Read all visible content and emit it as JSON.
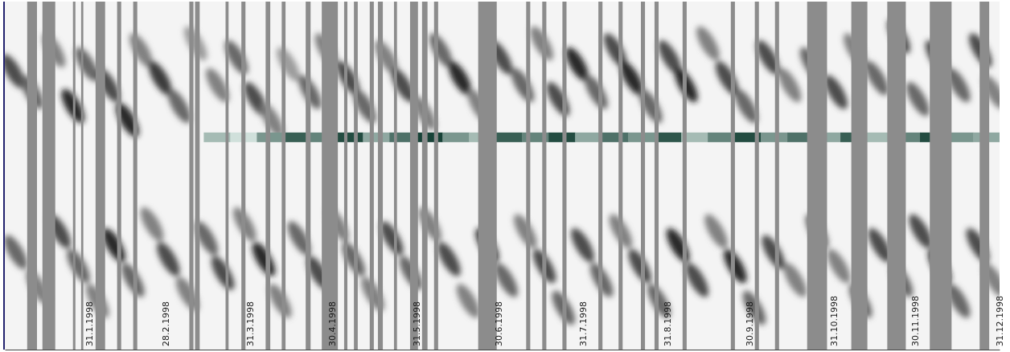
{
  "chart_data": {
    "type": "synoptic",
    "xlim": [
      0,
      365
    ],
    "ylim": [
      0,
      100
    ],
    "tick_labels": "x",
    "xticks": [
      {
        "value": 31,
        "label": "31.1.1998"
      },
      {
        "value": 59,
        "label": "28.2.1998"
      },
      {
        "value": 90,
        "label": "31.3.1998"
      },
      {
        "value": 120,
        "label": "30.4.1998"
      },
      {
        "value": 151,
        "label": "31.5.1998"
      },
      {
        "value": 181,
        "label": "30.6.1998"
      },
      {
        "value": 212,
        "label": "31.7.1998"
      },
      {
        "value": 243,
        "label": "31.8.1998"
      },
      {
        "value": 273,
        "label": "30.9.1998"
      },
      {
        "value": 304,
        "label": "31.10.1998"
      },
      {
        "value": 334,
        "label": "30.11.1998"
      },
      {
        "value": 365,
        "label": "31.12.1998"
      }
    ],
    "darkness_lim": [
      0,
      1
    ],
    "features": [
      {
        "x": 3,
        "y": 80,
        "darkness": 0.8
      },
      {
        "x": 10,
        "y": 74,
        "darkness": 0.7
      },
      {
        "x": 18,
        "y": 86,
        "darkness": 0.6
      },
      {
        "x": 25,
        "y": 70,
        "darkness": 0.9
      },
      {
        "x": 30,
        "y": 82,
        "darkness": 0.7
      },
      {
        "x": 38,
        "y": 76,
        "darkness": 0.8
      },
      {
        "x": 45,
        "y": 66,
        "darkness": 0.9
      },
      {
        "x": 50,
        "y": 86,
        "darkness": 0.6
      },
      {
        "x": 57,
        "y": 78,
        "darkness": 0.85
      },
      {
        "x": 64,
        "y": 70,
        "darkness": 0.7
      },
      {
        "x": 70,
        "y": 88,
        "darkness": 0.5
      },
      {
        "x": 78,
        "y": 76,
        "darkness": 0.6
      },
      {
        "x": 85,
        "y": 84,
        "darkness": 0.7
      },
      {
        "x": 92,
        "y": 72,
        "darkness": 0.8
      },
      {
        "x": 98,
        "y": 66,
        "darkness": 0.6
      },
      {
        "x": 104,
        "y": 82,
        "darkness": 0.5
      },
      {
        "x": 112,
        "y": 74,
        "darkness": 0.7
      },
      {
        "x": 118,
        "y": 86,
        "darkness": 0.6
      },
      {
        "x": 126,
        "y": 78,
        "darkness": 0.8
      },
      {
        "x": 132,
        "y": 70,
        "darkness": 0.7
      },
      {
        "x": 140,
        "y": 84,
        "darkness": 0.6
      },
      {
        "x": 146,
        "y": 76,
        "darkness": 0.8
      },
      {
        "x": 154,
        "y": 68,
        "darkness": 0.6
      },
      {
        "x": 160,
        "y": 86,
        "darkness": 0.7
      },
      {
        "x": 167,
        "y": 78,
        "darkness": 0.9
      },
      {
        "x": 174,
        "y": 70,
        "darkness": 0.6
      },
      {
        "x": 182,
        "y": 84,
        "darkness": 0.8
      },
      {
        "x": 190,
        "y": 76,
        "darkness": 0.7
      },
      {
        "x": 197,
        "y": 88,
        "darkness": 0.6
      },
      {
        "x": 203,
        "y": 72,
        "darkness": 0.8
      },
      {
        "x": 210,
        "y": 82,
        "darkness": 0.9
      },
      {
        "x": 217,
        "y": 74,
        "darkness": 0.7
      },
      {
        "x": 224,
        "y": 86,
        "darkness": 0.8
      },
      {
        "x": 230,
        "y": 78,
        "darkness": 0.9
      },
      {
        "x": 237,
        "y": 70,
        "darkness": 0.7
      },
      {
        "x": 244,
        "y": 84,
        "darkness": 0.8
      },
      {
        "x": 250,
        "y": 76,
        "darkness": 0.9
      },
      {
        "x": 258,
        "y": 88,
        "darkness": 0.6
      },
      {
        "x": 265,
        "y": 78,
        "darkness": 0.8
      },
      {
        "x": 272,
        "y": 70,
        "darkness": 0.7
      },
      {
        "x": 280,
        "y": 84,
        "darkness": 0.8
      },
      {
        "x": 288,
        "y": 76,
        "darkness": 0.6
      },
      {
        "x": 296,
        "y": 82,
        "darkness": 0.7
      },
      {
        "x": 305,
        "y": 74,
        "darkness": 0.8
      },
      {
        "x": 312,
        "y": 86,
        "darkness": 0.6
      },
      {
        "x": 320,
        "y": 78,
        "darkness": 0.7
      },
      {
        "x": 328,
        "y": 90,
        "darkness": 0.8
      },
      {
        "x": 335,
        "y": 72,
        "darkness": 0.7
      },
      {
        "x": 342,
        "y": 84,
        "darkness": 0.8
      },
      {
        "x": 350,
        "y": 76,
        "darkness": 0.7
      },
      {
        "x": 358,
        "y": 86,
        "darkness": 0.8
      },
      {
        "x": 363,
        "y": 74,
        "darkness": 0.6
      },
      {
        "x": 4,
        "y": 28,
        "darkness": 0.7
      },
      {
        "x": 12,
        "y": 18,
        "darkness": 0.6
      },
      {
        "x": 20,
        "y": 34,
        "darkness": 0.8
      },
      {
        "x": 27,
        "y": 24,
        "darkness": 0.7
      },
      {
        "x": 34,
        "y": 14,
        "darkness": 0.6
      },
      {
        "x": 40,
        "y": 30,
        "darkness": 0.9
      },
      {
        "x": 47,
        "y": 20,
        "darkness": 0.7
      },
      {
        "x": 54,
        "y": 36,
        "darkness": 0.6
      },
      {
        "x": 60,
        "y": 26,
        "darkness": 0.8
      },
      {
        "x": 67,
        "y": 16,
        "darkness": 0.6
      },
      {
        "x": 74,
        "y": 32,
        "darkness": 0.7
      },
      {
        "x": 80,
        "y": 22,
        "darkness": 0.8
      },
      {
        "x": 88,
        "y": 36,
        "darkness": 0.6
      },
      {
        "x": 95,
        "y": 26,
        "darkness": 0.9
      },
      {
        "x": 101,
        "y": 14,
        "darkness": 0.6
      },
      {
        "x": 108,
        "y": 32,
        "darkness": 0.7
      },
      {
        "x": 115,
        "y": 22,
        "darkness": 0.8
      },
      {
        "x": 122,
        "y": 36,
        "darkness": 0.6
      },
      {
        "x": 128,
        "y": 26,
        "darkness": 0.7
      },
      {
        "x": 135,
        "y": 16,
        "darkness": 0.6
      },
      {
        "x": 142,
        "y": 32,
        "darkness": 0.8
      },
      {
        "x": 149,
        "y": 22,
        "darkness": 0.7
      },
      {
        "x": 156,
        "y": 36,
        "darkness": 0.6
      },
      {
        "x": 163,
        "y": 26,
        "darkness": 0.8
      },
      {
        "x": 170,
        "y": 14,
        "darkness": 0.6
      },
      {
        "x": 177,
        "y": 30,
        "darkness": 0.9
      },
      {
        "x": 184,
        "y": 20,
        "darkness": 0.7
      },
      {
        "x": 191,
        "y": 34,
        "darkness": 0.6
      },
      {
        "x": 198,
        "y": 24,
        "darkness": 0.8
      },
      {
        "x": 205,
        "y": 12,
        "darkness": 0.7
      },
      {
        "x": 212,
        "y": 30,
        "darkness": 0.8
      },
      {
        "x": 219,
        "y": 20,
        "darkness": 0.7
      },
      {
        "x": 226,
        "y": 34,
        "darkness": 0.6
      },
      {
        "x": 233,
        "y": 24,
        "darkness": 0.8
      },
      {
        "x": 240,
        "y": 14,
        "darkness": 0.7
      },
      {
        "x": 247,
        "y": 30,
        "darkness": 0.9
      },
      {
        "x": 254,
        "y": 20,
        "darkness": 0.8
      },
      {
        "x": 261,
        "y": 34,
        "darkness": 0.6
      },
      {
        "x": 268,
        "y": 24,
        "darkness": 0.9
      },
      {
        "x": 275,
        "y": 12,
        "darkness": 0.7
      },
      {
        "x": 282,
        "y": 28,
        "darkness": 0.8
      },
      {
        "x": 290,
        "y": 20,
        "darkness": 0.6
      },
      {
        "x": 298,
        "y": 34,
        "darkness": 0.7
      },
      {
        "x": 306,
        "y": 24,
        "darkness": 0.6
      },
      {
        "x": 314,
        "y": 14,
        "darkness": 0.7
      },
      {
        "x": 321,
        "y": 30,
        "darkness": 0.8
      },
      {
        "x": 329,
        "y": 20,
        "darkness": 0.7
      },
      {
        "x": 336,
        "y": 34,
        "darkness": 0.8
      },
      {
        "x": 343,
        "y": 24,
        "darkness": 0.9
      },
      {
        "x": 350,
        "y": 14,
        "darkness": 0.7
      },
      {
        "x": 357,
        "y": 30,
        "darkness": 0.8
      },
      {
        "x": 363,
        "y": 20,
        "darkness": 0.6
      }
    ],
    "strip": {
      "x_start": 73,
      "x_end": 365,
      "y": 61,
      "values": [
        0.3,
        0.1,
        0.5,
        0.8,
        0.6,
        0.9,
        0.4,
        0.7,
        0.95,
        0.5,
        0.3,
        0.8,
        0.6,
        0.9,
        0.4,
        0.7,
        0.5,
        0.85,
        0.3,
        0.6,
        0.9,
        0.5,
        0.7,
        0.4,
        0.8,
        0.3,
        0.6,
        0.9,
        0.5,
        0.4
      ]
    },
    "gaps": [
      [
        8.2,
        11.8
      ],
      [
        13.8,
        18.5
      ],
      [
        25.0,
        25.9
      ],
      [
        28.0,
        28.8
      ],
      [
        33.3,
        36.8
      ],
      [
        41.2,
        42.7
      ],
      [
        47.1,
        48.6
      ],
      [
        67.7,
        69.2
      ],
      [
        69.8,
        71.5
      ],
      [
        81.0,
        82.1
      ],
      [
        86.8,
        88.3
      ],
      [
        95.7,
        97.4
      ],
      [
        101.6,
        103.0
      ],
      [
        110.4,
        112.2
      ],
      [
        116.3,
        122.2
      ],
      [
        124.5,
        125.7
      ],
      [
        128.1,
        129.5
      ],
      [
        133.9,
        135.4
      ],
      [
        136.9,
        138.7
      ],
      [
        142.8,
        143.9
      ],
      [
        148.7,
        151.6
      ],
      [
        153.1,
        155.1
      ],
      [
        157.5,
        159.0
      ],
      [
        173.7,
        180.5
      ],
      [
        191.3,
        192.8
      ],
      [
        197.2,
        198.7
      ],
      [
        204.6,
        206.1
      ],
      [
        217.8,
        219.3
      ],
      [
        225.2,
        226.7
      ],
      [
        233.4,
        234.9
      ],
      [
        238.4,
        239.9
      ],
      [
        248.7,
        250.2
      ],
      [
        266.4,
        267.9
      ],
      [
        275.2,
        276.7
      ],
      [
        282.6,
        284.1
      ],
      [
        294.4,
        301.7
      ],
      [
        310.6,
        316.5
      ],
      [
        323.8,
        330.6
      ],
      [
        339.4,
        347.4
      ],
      [
        357.7,
        361.2
      ]
    ]
  }
}
